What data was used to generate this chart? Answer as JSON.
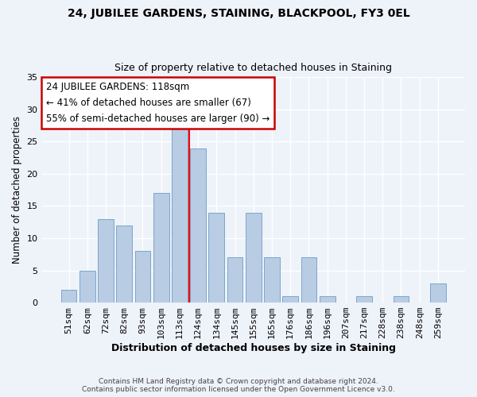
{
  "title_line1": "24, JUBILEE GARDENS, STAINING, BLACKPOOL, FY3 0EL",
  "title_line2": "Size of property relative to detached houses in Staining",
  "xlabel": "Distribution of detached houses by size in Staining",
  "ylabel": "Number of detached properties",
  "bar_labels": [
    "51sqm",
    "62sqm",
    "72sqm",
    "82sqm",
    "93sqm",
    "103sqm",
    "113sqm",
    "124sqm",
    "134sqm",
    "145sqm",
    "155sqm",
    "165sqm",
    "176sqm",
    "186sqm",
    "196sqm",
    "207sqm",
    "217sqm",
    "228sqm",
    "238sqm",
    "248sqm",
    "259sqm"
  ],
  "bar_values": [
    2,
    5,
    13,
    12,
    8,
    17,
    27,
    24,
    14,
    7,
    14,
    7,
    1,
    7,
    1,
    0,
    1,
    0,
    1,
    0,
    3
  ],
  "bar_color": "#b8cce4",
  "bar_edge_color": "#7ba7c9",
  "marker_color": "red",
  "ylim": [
    0,
    35
  ],
  "yticks": [
    0,
    5,
    10,
    15,
    20,
    25,
    30,
    35
  ],
  "annotation_title": "24 JUBILEE GARDENS: 118sqm",
  "annotation_line1": "← 41% of detached houses are smaller (67)",
  "annotation_line2": "55% of semi-detached houses are larger (90) →",
  "annotation_box_color": "#ffffff",
  "annotation_box_edge": "#cc0000",
  "footer_line1": "Contains HM Land Registry data © Crown copyright and database right 2024.",
  "footer_line2": "Contains public sector information licensed under the Open Government Licence v3.0.",
  "bg_color": "#eef2f9",
  "plot_bg_color": "#eef2f9"
}
